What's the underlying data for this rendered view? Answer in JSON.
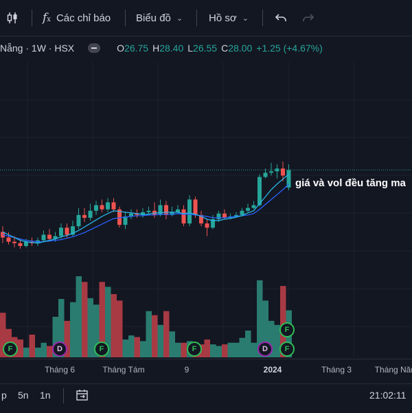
{
  "toolbar": {
    "indicators_label": "Các chỉ báo",
    "chart_label": "Biểu đồ",
    "profile_label": "Hồ sơ"
  },
  "legend": {
    "symbol": "Nẵng · 1W · HSX",
    "open_key": "O",
    "open": "26.75",
    "high_key": "H",
    "high": "28.40",
    "low_key": "L",
    "low": "26.55",
    "close_key": "C",
    "close": "28.00",
    "change": "+1.25 (+4.67%)"
  },
  "annotation": "giá và vol đều tăng ma",
  "xaxis": {
    "labels": [
      {
        "text": "Tháng 6",
        "bold": false
      },
      {
        "text": "Tháng Tám",
        "bold": false
      },
      {
        "text": "9",
        "bold": false
      },
      {
        "text": "2024",
        "bold": true
      },
      {
        "text": "Tháng 3",
        "bold": false
      },
      {
        "text": "Tháng Năm",
        "bold": false
      }
    ]
  },
  "bottom": {
    "r1": "p",
    "r2": "5n",
    "r3": "1n",
    "time": "21:02:11"
  },
  "events": [
    {
      "label": "F",
      "type": "F"
    },
    {
      "label": "D",
      "type": "D"
    },
    {
      "label": "F",
      "type": "F"
    },
    {
      "label": "F",
      "type": "F"
    },
    {
      "label": "D",
      "type": "D"
    },
    {
      "label": "F",
      "type": "F"
    },
    {
      "label": "F",
      "type": "F"
    }
  ],
  "colors": {
    "up": "#26a69a",
    "down": "#ef5350",
    "ma_fast": "#2ab5e8",
    "ma_slow": "#2962ff",
    "vol_up": "#2a7c70",
    "vol_down": "#a83a44",
    "price_line": "#26a69a"
  },
  "chart_data": {
    "type": "candlestick",
    "interval": "1W",
    "candles": [
      [
        23.6,
        23.2,
        24.0,
        22.8
      ],
      [
        23.2,
        22.9,
        23.6,
        22.7
      ],
      [
        22.9,
        22.8,
        23.3,
        22.5
      ],
      [
        22.8,
        22.6,
        23.1,
        22.4
      ],
      [
        22.6,
        22.9,
        23.1,
        22.5
      ],
      [
        22.9,
        22.8,
        23.2,
        22.6
      ],
      [
        22.8,
        23.0,
        23.2,
        22.6
      ],
      [
        23.0,
        23.4,
        23.7,
        22.9
      ],
      [
        23.4,
        23.1,
        23.8,
        22.9
      ],
      [
        23.1,
        23.3,
        23.6,
        22.9
      ],
      [
        23.3,
        23.9,
        24.2,
        23.1
      ],
      [
        23.9,
        23.4,
        24.2,
        23.2
      ],
      [
        23.4,
        24.0,
        24.4,
        23.3
      ],
      [
        24.0,
        24.8,
        25.3,
        23.8
      ],
      [
        24.8,
        24.6,
        25.3,
        24.3
      ],
      [
        24.6,
        25.1,
        25.6,
        24.4
      ],
      [
        25.1,
        25.5,
        25.8,
        24.8
      ],
      [
        25.5,
        25.2,
        25.9,
        25.0
      ],
      [
        25.2,
        25.7,
        26.0,
        25.0
      ],
      [
        25.7,
        25.2,
        26.0,
        25.0
      ],
      [
        25.2,
        24.1,
        25.4,
        23.9
      ],
      [
        24.1,
        24.7,
        25.0,
        23.8
      ],
      [
        24.7,
        24.9,
        25.2,
        24.5
      ],
      [
        24.9,
        24.8,
        25.2,
        24.6
      ],
      [
        24.8,
        25.0,
        25.3,
        24.6
      ],
      [
        25.0,
        25.1,
        25.4,
        24.8
      ],
      [
        25.1,
        24.8,
        25.7,
        24.6
      ],
      [
        24.8,
        25.5,
        25.9,
        24.7
      ],
      [
        25.5,
        24.8,
        25.8,
        24.5
      ],
      [
        24.8,
        25.0,
        25.4,
        24.7
      ],
      [
        25.0,
        25.2,
        25.5,
        24.9
      ],
      [
        25.2,
        24.2,
        25.5,
        24.0
      ],
      [
        24.2,
        25.9,
        26.2,
        24.0
      ],
      [
        25.9,
        24.8,
        26.1,
        24.6
      ],
      [
        24.8,
        24.2,
        25.1,
        24.0
      ],
      [
        24.2,
        23.9,
        24.5,
        23.3
      ],
      [
        23.9,
        24.5,
        24.8,
        23.8
      ],
      [
        24.5,
        24.9,
        25.1,
        24.3
      ],
      [
        24.9,
        24.6,
        25.2,
        24.5
      ],
      [
        24.6,
        24.7,
        24.9,
        24.5
      ],
      [
        24.7,
        24.8,
        25.0,
        24.6
      ],
      [
        24.8,
        25.1,
        25.3,
        24.7
      ],
      [
        25.1,
        25.3,
        25.6,
        25.0
      ],
      [
        25.3,
        25.5,
        25.8,
        25.2
      ],
      [
        25.5,
        27.5,
        27.7,
        25.4
      ],
      [
        27.5,
        27.8,
        28.1,
        27.4
      ],
      [
        27.8,
        27.9,
        28.5,
        27.6
      ],
      [
        27.9,
        28.1,
        28.4,
        27.4
      ],
      [
        28.1,
        27.6,
        28.6,
        27.2
      ],
      [
        26.75,
        28.0,
        28.4,
        26.55
      ]
    ],
    "volume_rel": [
      0.55,
      0.35,
      0.25,
      0.22,
      0.12,
      0.28,
      0.12,
      0.18,
      0.14,
      0.5,
      0.72,
      0.45,
      0.68,
      1.0,
      0.93,
      0.73,
      0.65,
      0.93,
      0.87,
      0.78,
      0.7,
      0.22,
      0.27,
      0.25,
      0.2,
      0.57,
      0.52,
      0.4,
      0.57,
      0.32,
      0.18,
      0.18,
      0.2,
      0.16,
      0.16,
      0.22,
      0.16,
      0.14,
      0.16,
      0.18,
      0.18,
      0.24,
      0.33,
      0.18,
      0.95,
      0.7,
      0.45,
      0.4,
      0.88,
      0.58
    ],
    "ma_fast": [
      23.6,
      23.4,
      23.2,
      23.0,
      22.9,
      22.85,
      22.8,
      22.9,
      23.0,
      23.1,
      23.25,
      23.35,
      23.5,
      23.7,
      23.95,
      24.2,
      24.45,
      24.7,
      24.9,
      25.1,
      25.05,
      25.0,
      24.95,
      24.9,
      24.85,
      24.85,
      24.95,
      24.95,
      25.0,
      25.0,
      25.0,
      24.9,
      24.95,
      24.85,
      24.7,
      24.5,
      24.4,
      24.4,
      24.5,
      24.55,
      24.65,
      24.75,
      24.95,
      25.1,
      25.6,
      26.1,
      26.6,
      27.0,
      27.35,
      27.7
    ],
    "ma_slow": [
      23.4,
      23.3,
      23.2,
      23.1,
      23.0,
      22.95,
      22.9,
      22.9,
      22.95,
      23.0,
      23.05,
      23.15,
      23.25,
      23.4,
      23.55,
      23.75,
      23.95,
      24.15,
      24.35,
      24.55,
      24.6,
      24.65,
      24.7,
      24.75,
      24.75,
      24.8,
      24.8,
      24.85,
      24.85,
      24.85,
      24.9,
      24.85,
      24.85,
      24.8,
      24.75,
      24.7,
      24.6,
      24.6,
      24.6,
      24.65,
      24.7,
      24.75,
      24.8,
      24.9,
      25.2,
      25.55,
      25.9,
      26.25,
      26.6,
      27.0
    ],
    "last_price": 28.0,
    "ylim": [
      22.0,
      29.0
    ]
  }
}
